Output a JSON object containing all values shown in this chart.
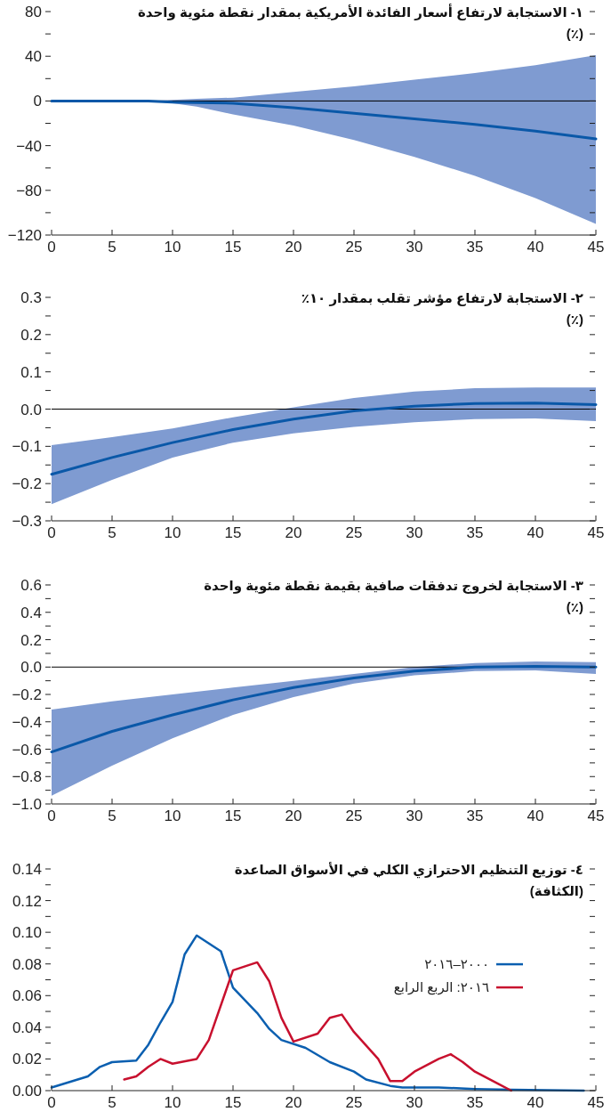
{
  "chart_data": [
    {
      "type": "line",
      "title": "١- الاستجابة لارتفاع أسعار الفائدة الأمريكية بمقدار نقطة مئوية واحدة",
      "subtitle": "(٪)",
      "grid": false,
      "x": [
        0,
        5,
        8,
        10,
        12,
        15,
        20,
        25,
        30,
        35,
        40,
        45
      ],
      "series": [
        {
          "color": "#0a58a8",
          "values": [
            0,
            0,
            0,
            -1,
            -1.5,
            -2,
            -6,
            -11,
            -16,
            -21,
            -27,
            -34
          ],
          "upper": [
            0,
            0,
            0,
            1,
            2,
            3,
            8,
            13,
            19,
            25,
            32,
            41
          ],
          "lower": [
            0,
            0,
            0,
            -2,
            -5,
            -12,
            -22,
            -35,
            -50,
            -67,
            -87,
            -110
          ]
        }
      ],
      "ref_lines": [
        {
          "axis": "y",
          "value": 0,
          "color": "#000000"
        }
      ],
      "xlim": [
        0,
        45
      ],
      "xticks": [
        0,
        5,
        10,
        15,
        20,
        25,
        30,
        35,
        40,
        45
      ],
      "ylim": [
        -120,
        80
      ],
      "yticks": [
        {
          "value": -120,
          "label": "−120"
        },
        {
          "value": -100,
          "label": null
        },
        {
          "value": -80,
          "label": "−80"
        },
        {
          "value": -60,
          "label": null
        },
        {
          "value": -40,
          "label": "−40"
        },
        {
          "value": -20,
          "label": null
        },
        0,
        {
          "value": 20,
          "label": null
        },
        40,
        {
          "value": 60,
          "label": null
        },
        80
      ]
    },
    {
      "type": "line",
      "title": "٢- الاستجابة لارتفاع مؤشر تقلب بمقدار ١٠٪",
      "subtitle": "(٪)",
      "grid": false,
      "x": [
        0,
        5,
        10,
        15,
        20,
        25,
        30,
        35,
        40,
        45
      ],
      "series": [
        {
          "color": "#0a58a8",
          "values": [
            -0.175,
            -0.13,
            -0.09,
            -0.055,
            -0.027,
            -0.005,
            0.008,
            0.015,
            0.016,
            0.012
          ],
          "upper": [
            -0.097,
            -0.075,
            -0.052,
            -0.022,
            0.005,
            0.03,
            0.047,
            0.056,
            0.058,
            0.058
          ],
          "lower": [
            -0.255,
            -0.19,
            -0.13,
            -0.09,
            -0.065,
            -0.048,
            -0.035,
            -0.027,
            -0.025,
            -0.032
          ]
        }
      ],
      "ref_lines": [
        {
          "axis": "y",
          "value": 0,
          "color": "#000000"
        }
      ],
      "xlim": [
        0,
        45
      ],
      "xticks": [
        0,
        5,
        10,
        15,
        20,
        25,
        30,
        35,
        40,
        45
      ],
      "ylim": [
        -0.3,
        0.3
      ],
      "yticks": [
        {
          "value": -0.3,
          "label": "−0.3"
        },
        {
          "value": -0.25,
          "label": null
        },
        {
          "value": -0.2,
          "label": "−0.2"
        },
        {
          "value": -0.15,
          "label": null
        },
        {
          "value": -0.1,
          "label": "−0.1"
        },
        {
          "value": -0.05,
          "label": null
        },
        {
          "value": 0,
          "label": "0.0"
        },
        {
          "value": 0.05,
          "label": null
        },
        0.1,
        {
          "value": 0.15,
          "label": null
        },
        0.2,
        {
          "value": 0.25,
          "label": null
        },
        0.3
      ]
    },
    {
      "type": "line",
      "title": "٣- الاستجابة لخروج تدفقات صافية بقيمة نقطة مئوية واحدة",
      "subtitle": "(٪)",
      "grid": false,
      "x": [
        0,
        5,
        10,
        15,
        20,
        25,
        30,
        35,
        40,
        45
      ],
      "series": [
        {
          "color": "#0a58a8",
          "values": [
            -0.62,
            -0.47,
            -0.35,
            -0.24,
            -0.15,
            -0.08,
            -0.03,
            0,
            0.005,
            0
          ],
          "upper": [
            -0.31,
            -0.25,
            -0.2,
            -0.15,
            -0.1,
            -0.05,
            0,
            0.03,
            0.04,
            0.035
          ],
          "lower": [
            -0.94,
            -0.72,
            -0.52,
            -0.35,
            -0.22,
            -0.12,
            -0.06,
            -0.03,
            -0.025,
            -0.05
          ]
        }
      ],
      "ref_lines": [
        {
          "axis": "y",
          "value": 0,
          "color": "#000000"
        }
      ],
      "xlim": [
        0,
        45
      ],
      "xticks": [
        0,
        5,
        10,
        15,
        20,
        25,
        30,
        35,
        40,
        45
      ],
      "ylim": [
        -1.0,
        0.6
      ],
      "yticks": [
        {
          "value": -1.0,
          "label": "−1.0"
        },
        {
          "value": -0.9,
          "label": null
        },
        {
          "value": -0.8,
          "label": "−0.8"
        },
        {
          "value": -0.7,
          "label": null
        },
        {
          "value": -0.6,
          "label": "−0.6"
        },
        {
          "value": -0.5,
          "label": null
        },
        {
          "value": -0.4,
          "label": "−0.4"
        },
        {
          "value": -0.3,
          "label": null
        },
        {
          "value": -0.2,
          "label": "−0.2"
        },
        {
          "value": -0.1,
          "label": null
        },
        {
          "value": 0,
          "label": "0.0"
        },
        {
          "value": 0.1,
          "label": null
        },
        0.2,
        {
          "value": 0.3,
          "label": null
        },
        0.4,
        {
          "value": 0.5,
          "label": null
        },
        0.6
      ]
    },
    {
      "type": "line",
      "title": "٤- توزيع التنظيم الاحترازي الكلي في الأسواق الصاعدة",
      "subtitle": "(الكثافة)",
      "grid": false,
      "legend": "right",
      "series": [
        {
          "name": "٢٠٠٠–٢٠١٦",
          "color": "#0b5fb0",
          "x": [
            0,
            3,
            4,
            5,
            7,
            8,
            9,
            10,
            11,
            12,
            14,
            15,
            17,
            18,
            19,
            21,
            23,
            25,
            26,
            28,
            29,
            32,
            35,
            38,
            44
          ],
          "values": [
            0.002,
            0.009,
            0.015,
            0.018,
            0.019,
            0.029,
            0.043,
            0.056,
            0.086,
            0.098,
            0.088,
            0.065,
            0.049,
            0.039,
            0.032,
            0.027,
            0.018,
            0.012,
            0.007,
            0.003,
            0.002,
            0.002,
            0.001,
            0.0005,
            0
          ]
        },
        {
          "name": "٢٠١٦: الربع الرابع",
          "color": "#c8102e",
          "x": [
            6,
            7,
            8,
            9,
            10,
            12,
            13,
            15,
            17,
            18,
            19,
            20,
            22,
            23,
            24,
            25,
            27,
            28,
            29,
            30,
            32,
            33,
            34,
            35,
            37,
            38
          ],
          "values": [
            0.007,
            0.009,
            0.015,
            0.02,
            0.017,
            0.02,
            0.032,
            0.076,
            0.081,
            0.069,
            0.046,
            0.031,
            0.036,
            0.046,
            0.048,
            0.037,
            0.02,
            0.006,
            0.006,
            0.012,
            0.02,
            0.023,
            0.018,
            0.012,
            0.004,
            0
          ]
        }
      ],
      "xlim": [
        0,
        45
      ],
      "xticks": [
        0,
        5,
        10,
        15,
        20,
        25,
        30,
        35,
        40,
        45
      ],
      "ylim": [
        0,
        0.14
      ],
      "yticks": [
        {
          "value": 0,
          "label": "0.00"
        },
        {
          "value": 0.01,
          "label": null
        },
        {
          "value": 0.02,
          "label": "0.02"
        },
        {
          "value": 0.03,
          "label": null
        },
        {
          "value": 0.04,
          "label": "0.04"
        },
        {
          "value": 0.05,
          "label": null
        },
        {
          "value": 0.06,
          "label": "0.06"
        },
        {
          "value": 0.07,
          "label": null
        },
        {
          "value": 0.08,
          "label": "0.08"
        },
        {
          "value": 0.09,
          "label": null
        },
        {
          "value": 0.1,
          "label": "0.10"
        },
        {
          "value": 0.11,
          "label": null
        },
        {
          "value": 0.12,
          "label": "0.12"
        },
        {
          "value": 0.13,
          "label": null
        },
        {
          "value": 0.14,
          "label": "0.14"
        }
      ]
    }
  ]
}
